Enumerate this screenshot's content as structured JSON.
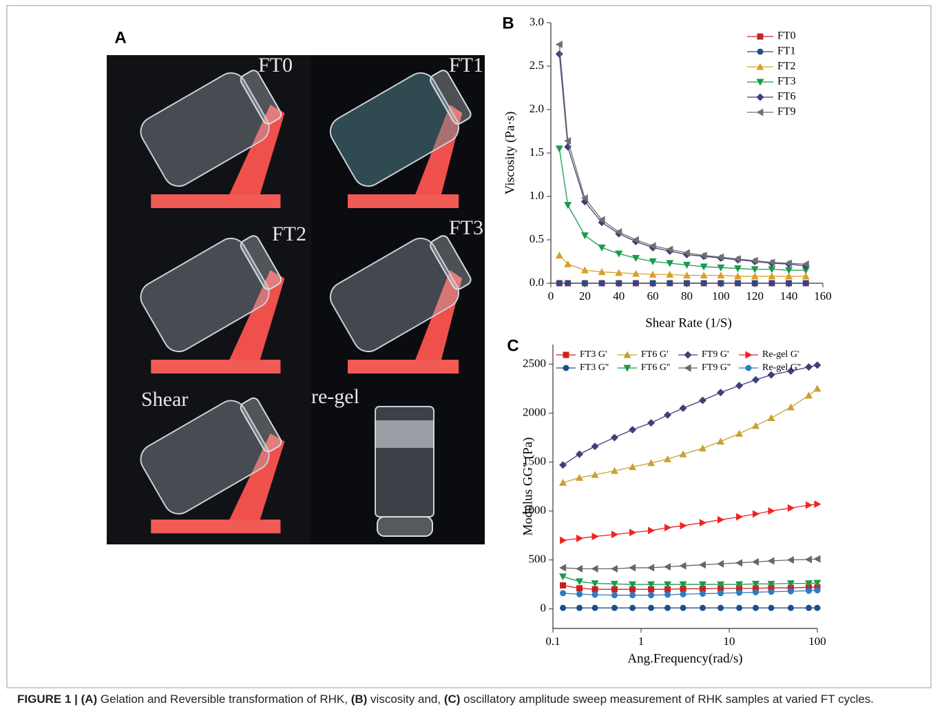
{
  "panel_a": {
    "label": "A",
    "photos": [
      "FT0",
      "FT1",
      "FT2",
      "FT3",
      "Shear",
      "re-gel"
    ]
  },
  "chart_data": [
    {
      "type": "line",
      "label": "B",
      "x_label": "Shear Rate (1/S)",
      "y_label": "Viscosity (Pa·s)",
      "x": [
        5,
        10,
        20,
        30,
        40,
        50,
        60,
        70,
        80,
        90,
        100,
        110,
        120,
        130,
        140,
        150
      ],
      "xlim": [
        0,
        160
      ],
      "xticks": [
        0,
        20,
        40,
        60,
        80,
        100,
        120,
        140,
        160
      ],
      "ylim": [
        0,
        3
      ],
      "yticks": [
        {
          "value": 0,
          "label": "0.0"
        },
        0.5,
        {
          "value": 1,
          "label": "1.0"
        },
        1.5,
        {
          "value": 2,
          "label": "2.0"
        },
        2.5,
        {
          "value": 3,
          "label": "3.0"
        }
      ],
      "legend": "top-right",
      "series": [
        {
          "name": "FT0",
          "color": "#c0282e",
          "marker": "square",
          "values": [
            0,
            0,
            0,
            0,
            0,
            0,
            0,
            0,
            0,
            0,
            0,
            0,
            0,
            0,
            0,
            0
          ]
        },
        {
          "name": "FT1",
          "color": "#1f4e8c",
          "marker": "circle",
          "values": [
            0,
            0,
            0,
            0,
            0,
            0,
            0,
            0,
            0,
            0,
            0,
            0,
            0,
            0,
            0,
            0
          ]
        },
        {
          "name": "FT2",
          "color": "#d8a02a",
          "marker": "triangle-up",
          "values": [
            0.32,
            0.22,
            0.15,
            0.13,
            0.12,
            0.11,
            0.1,
            0.1,
            0.09,
            0.09,
            0.09,
            0.08,
            0.08,
            0.08,
            0.08,
            0.08
          ]
        },
        {
          "name": "FT3",
          "color": "#1a9a4a",
          "marker": "triangle-down",
          "values": [
            1.55,
            0.9,
            0.55,
            0.41,
            0.34,
            0.29,
            0.25,
            0.23,
            0.21,
            0.19,
            0.18,
            0.17,
            0.16,
            0.16,
            0.15,
            0.15
          ]
        },
        {
          "name": "FT6",
          "color": "#3e3f7a",
          "marker": "diamond",
          "values": [
            2.64,
            1.57,
            0.94,
            0.7,
            0.57,
            0.48,
            0.41,
            0.37,
            0.33,
            0.31,
            0.29,
            0.27,
            0.25,
            0.23,
            0.22,
            0.2
          ]
        },
        {
          "name": "FT9",
          "color": "#707070",
          "marker": "triangle-left",
          "values": [
            2.75,
            1.64,
            0.98,
            0.73,
            0.59,
            0.5,
            0.43,
            0.39,
            0.35,
            0.32,
            0.3,
            0.28,
            0.26,
            0.24,
            0.23,
            0.22
          ]
        }
      ]
    },
    {
      "type": "line",
      "label": "C",
      "x_label": "Ang.Frequency(rad/s)",
      "y_label": "Modulus GG'' (Pa)",
      "x": [
        0.13,
        0.2,
        0.3,
        0.5,
        0.8,
        1.3,
        2,
        3,
        5,
        8,
        13,
        20,
        30,
        50,
        80,
        100
      ],
      "xlog": true,
      "xlim": [
        0.1,
        100
      ],
      "xticks": [
        0.1,
        1,
        10,
        100
      ],
      "ylim": [
        -200,
        2700
      ],
      "yticks": [
        0,
        500,
        1000,
        1500,
        2000,
        2500
      ],
      "legend": "top",
      "series": [
        {
          "name": "FT3 G'",
          "color": "#cc1f1f",
          "marker": "square",
          "values": [
            240,
            210,
            200,
            200,
            200,
            200,
            200,
            205,
            205,
            210,
            210,
            210,
            215,
            215,
            220,
            220
          ]
        },
        {
          "name": "FT6 G'",
          "color": "#c8a032",
          "marker": "triangle-up",
          "values": [
            1290,
            1340,
            1370,
            1410,
            1450,
            1490,
            1530,
            1580,
            1640,
            1710,
            1790,
            1870,
            1950,
            2060,
            2180,
            2250
          ]
        },
        {
          "name": "FT9 G'",
          "color": "#3e3f7a",
          "marker": "diamond",
          "values": [
            1470,
            1580,
            1660,
            1750,
            1830,
            1900,
            1980,
            2050,
            2130,
            2210,
            2280,
            2340,
            2390,
            2430,
            2470,
            2490
          ]
        },
        {
          "name": "Re-gel G'",
          "color": "#ee2222",
          "marker": "triangle-right",
          "values": [
            700,
            720,
            740,
            760,
            780,
            800,
            830,
            850,
            880,
            910,
            940,
            970,
            1000,
            1030,
            1060,
            1070
          ]
        },
        {
          "name": "FT3 G''",
          "color": "#1f4e8c",
          "marker": "circle",
          "values": [
            10,
            10,
            10,
            10,
            10,
            10,
            10,
            10,
            10,
            10,
            10,
            10,
            10,
            10,
            10,
            10
          ]
        },
        {
          "name": "FT6 G''",
          "color": "#1a9a4a",
          "marker": "triangle-down",
          "values": [
            330,
            280,
            260,
            255,
            250,
            250,
            250,
            250,
            250,
            250,
            250,
            255,
            255,
            260,
            260,
            265
          ]
        },
        {
          "name": "FT9 G''",
          "color": "#666666",
          "marker": "triangle-left",
          "values": [
            420,
            410,
            410,
            410,
            420,
            420,
            430,
            440,
            450,
            460,
            470,
            480,
            490,
            500,
            505,
            510
          ]
        },
        {
          "name": "Re-gel G''",
          "color": "#2a7cc4",
          "marker": "circle",
          "values": [
            160,
            150,
            145,
            140,
            140,
            140,
            145,
            150,
            155,
            160,
            165,
            170,
            175,
            180,
            185,
            190
          ]
        }
      ]
    }
  ],
  "caption": [
    {
      "text": "FIGURE 1 | (A)",
      "bold": true
    },
    {
      "text": " Gelation and Reversible transformation of RHK, ",
      "bold": false
    },
    {
      "text": "(B)",
      "bold": true
    },
    {
      "text": " viscosity and, ",
      "bold": false
    },
    {
      "text": "(C)",
      "bold": true
    },
    {
      "text": " oscillatory amplitude sweep measurement of RHK samples at varied FT cycles.",
      "bold": false
    }
  ]
}
